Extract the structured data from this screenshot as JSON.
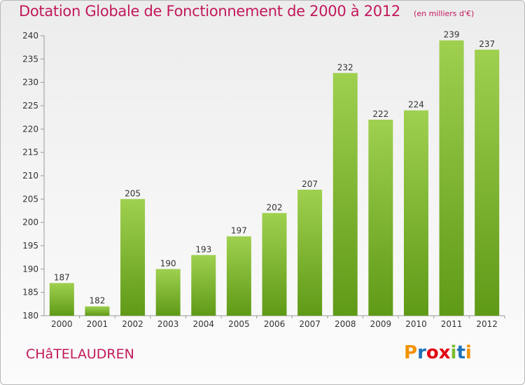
{
  "chart_data": {
    "type": "bar",
    "title": "Dotation Globale de Fonctionnement de 2000 à 2012",
    "unit_note": "(en milliers d'€)",
    "categories": [
      "2000",
      "2001",
      "2002",
      "2003",
      "2004",
      "2005",
      "2006",
      "2007",
      "2008",
      "2009",
      "2010",
      "2011",
      "2012"
    ],
    "values": [
      187,
      182,
      205,
      190,
      193,
      197,
      202,
      207,
      232,
      222,
      224,
      239,
      237
    ],
    "ylim": [
      180,
      240
    ],
    "yticks": [
      180,
      185,
      190,
      195,
      200,
      205,
      210,
      215,
      220,
      225,
      230,
      235,
      240
    ],
    "xlabel": "",
    "ylabel": "",
    "grid": false,
    "bar_color": "#7cbb2e"
  },
  "footer": {
    "place_name": "CHâTELAUDREN",
    "logo_text": "Proxiti",
    "logo_colors": [
      "#f39200",
      "#1d71b8",
      "#e30613",
      "#e30613",
      "#7cbb2e",
      "#1d71b8",
      "#f39200"
    ]
  }
}
